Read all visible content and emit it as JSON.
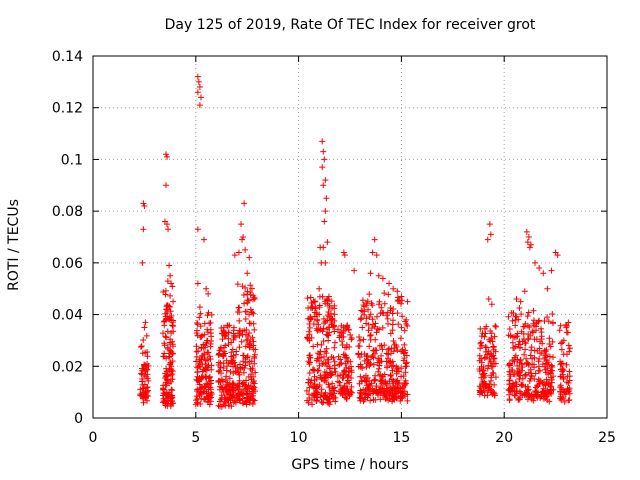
{
  "chart_data": {
    "type": "scatter",
    "title": "Day 125 of 2019, Rate Of TEC Index for receiver grot",
    "xlabel": "GPS time / hours",
    "ylabel": "ROTI / TECUs",
    "xlim": [
      0,
      25
    ],
    "ylim": [
      0,
      0.14
    ],
    "x_ticks": [
      0,
      5,
      10,
      15,
      20,
      25
    ],
    "y_ticks": [
      0,
      0.02,
      0.04,
      0.06,
      0.08,
      0.1,
      0.12,
      0.14
    ],
    "y_tick_labels": [
      "0",
      "0.02",
      "0.04",
      "0.06",
      "0.08",
      "0.1",
      "0.12",
      "0.14"
    ],
    "grid": true,
    "marker": "+",
    "color": "#ff0000",
    "clusters": [
      {
        "x_range": [
          2.3,
          2.7
        ],
        "y_base": [
          0.005,
          0.03
        ],
        "n": 60
      },
      {
        "x_range": [
          3.4,
          3.9
        ],
        "y_base": [
          0.004,
          0.05
        ],
        "n": 140
      },
      {
        "x_range": [
          5.0,
          5.8
        ],
        "y_base": [
          0.005,
          0.04
        ],
        "n": 150
      },
      {
        "x_range": [
          6.1,
          7.0
        ],
        "y_base": [
          0.004,
          0.035
        ],
        "n": 150
      },
      {
        "x_range": [
          7.0,
          7.9
        ],
        "y_base": [
          0.005,
          0.05
        ],
        "n": 170
      },
      {
        "x_range": [
          10.4,
          11.8
        ],
        "y_base": [
          0.005,
          0.045
        ],
        "n": 240
      },
      {
        "x_range": [
          11.9,
          12.6
        ],
        "y_base": [
          0.007,
          0.035
        ],
        "n": 100
      },
      {
        "x_range": [
          12.9,
          15.3
        ],
        "y_base": [
          0.006,
          0.045
        ],
        "n": 340
      },
      {
        "x_range": [
          18.8,
          19.6
        ],
        "y_base": [
          0.008,
          0.035
        ],
        "n": 110
      },
      {
        "x_range": [
          20.2,
          22.4
        ],
        "y_base": [
          0.006,
          0.04
        ],
        "n": 300
      },
      {
        "x_range": [
          22.7,
          23.2
        ],
        "y_base": [
          0.005,
          0.035
        ],
        "n": 60
      }
    ],
    "outliers": [
      [
        2.45,
        0.083
      ],
      [
        2.5,
        0.082
      ],
      [
        2.45,
        0.073
      ],
      [
        2.4,
        0.06
      ],
      [
        2.55,
        0.037
      ],
      [
        2.5,
        0.035
      ],
      [
        3.55,
        0.102
      ],
      [
        3.6,
        0.101
      ],
      [
        3.55,
        0.09
      ],
      [
        3.5,
        0.076
      ],
      [
        3.6,
        0.075
      ],
      [
        3.65,
        0.073
      ],
      [
        3.7,
        0.059
      ],
      [
        3.75,
        0.055
      ],
      [
        3.8,
        0.052
      ],
      [
        5.1,
        0.132
      ],
      [
        5.15,
        0.13
      ],
      [
        5.2,
        0.128
      ],
      [
        5.1,
        0.126
      ],
      [
        5.25,
        0.124
      ],
      [
        5.2,
        0.121
      ],
      [
        5.1,
        0.073
      ],
      [
        5.4,
        0.069
      ],
      [
        5.5,
        0.05
      ],
      [
        5.6,
        0.048
      ],
      [
        5.1,
        0.052
      ],
      [
        7.2,
        0.075
      ],
      [
        7.35,
        0.083
      ],
      [
        7.3,
        0.07
      ],
      [
        7.25,
        0.069
      ],
      [
        7.4,
        0.065
      ],
      [
        7.6,
        0.062
      ],
      [
        7.1,
        0.064
      ],
      [
        7.5,
        0.056
      ],
      [
        6.9,
        0.063
      ],
      [
        11.05,
        0.066
      ],
      [
        11.2,
        0.066
      ],
      [
        11.15,
        0.107
      ],
      [
        11.2,
        0.103
      ],
      [
        11.25,
        0.1
      ],
      [
        11.15,
        0.097
      ],
      [
        11.3,
        0.092
      ],
      [
        11.2,
        0.09
      ],
      [
        11.35,
        0.085
      ],
      [
        11.3,
        0.08
      ],
      [
        11.25,
        0.076
      ],
      [
        11.4,
        0.068
      ],
      [
        11.1,
        0.06
      ],
      [
        11.3,
        0.06
      ],
      [
        11.0,
        0.05
      ],
      [
        12.2,
        0.064
      ],
      [
        12.25,
        0.063
      ],
      [
        12.7,
        0.057
      ],
      [
        13.7,
        0.069
      ],
      [
        13.6,
        0.064
      ],
      [
        13.8,
        0.063
      ],
      [
        13.5,
        0.056
      ],
      [
        13.9,
        0.055
      ],
      [
        14.1,
        0.054
      ],
      [
        14.4,
        0.052
      ],
      [
        14.6,
        0.05
      ],
      [
        14.8,
        0.049
      ],
      [
        15.0,
        0.047
      ],
      [
        15.3,
        0.045
      ],
      [
        19.3,
        0.075
      ],
      [
        19.35,
        0.071
      ],
      [
        19.2,
        0.069
      ],
      [
        19.25,
        0.046
      ],
      [
        19.4,
        0.044
      ],
      [
        21.1,
        0.072
      ],
      [
        21.2,
        0.07
      ],
      [
        21.15,
        0.068
      ],
      [
        21.3,
        0.067
      ],
      [
        21.25,
        0.066
      ],
      [
        21.5,
        0.06
      ],
      [
        21.7,
        0.058
      ],
      [
        21.9,
        0.056
      ],
      [
        22.1,
        0.05
      ],
      [
        21.0,
        0.049
      ],
      [
        22.5,
        0.064
      ],
      [
        22.6,
        0.063
      ],
      [
        22.3,
        0.057
      ],
      [
        20.6,
        0.046
      ],
      [
        20.8,
        0.045
      ],
      [
        23.0,
        0.036
      ],
      [
        23.1,
        0.033
      ],
      [
        22.9,
        0.03
      ]
    ]
  }
}
